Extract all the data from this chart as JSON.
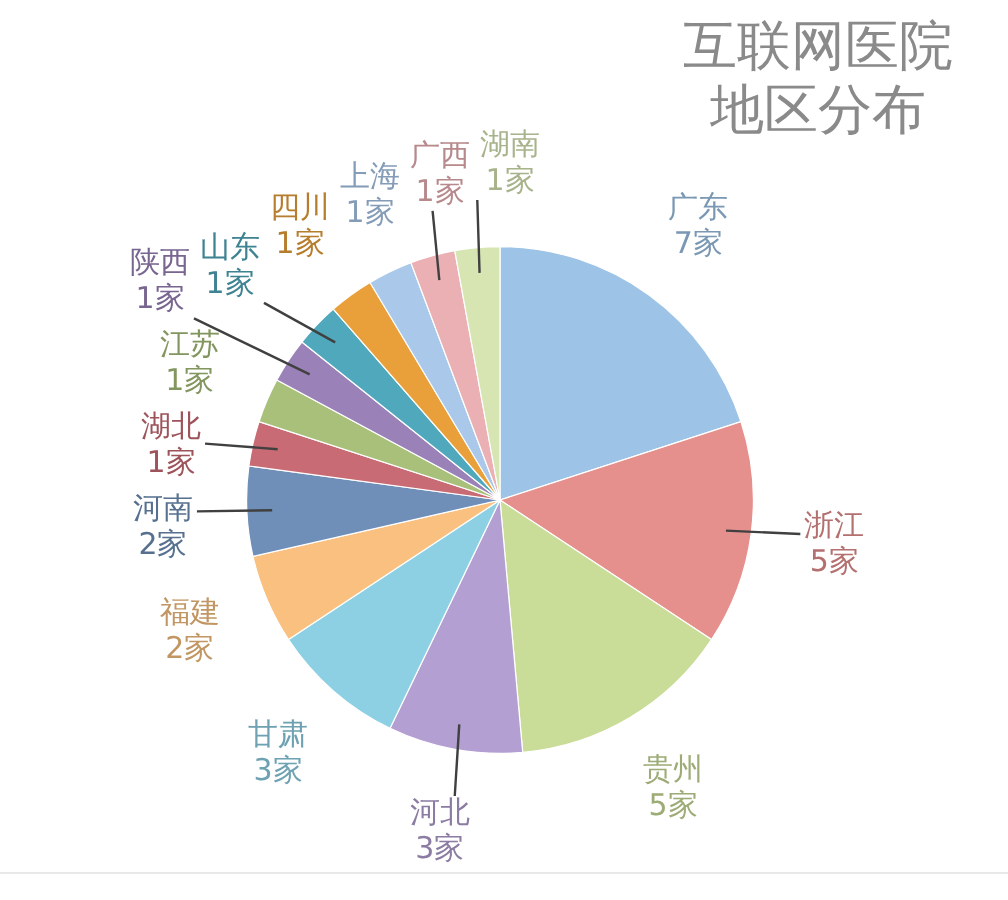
{
  "chart_data": {
    "type": "pie",
    "title": "互联网医院地区分布",
    "categories": [
      "广东",
      "浙江",
      "贵州",
      "河北",
      "甘肃",
      "福建",
      "河南",
      "湖北",
      "江苏",
      "陕西",
      "山东",
      "四川",
      "上海",
      "广西",
      "湖南"
    ],
    "values": [
      7,
      5,
      5,
      3,
      3,
      2,
      2,
      1,
      1,
      1,
      1,
      1,
      1,
      1,
      1
    ],
    "value_labels": [
      "7家",
      "5家",
      "5家",
      "3家",
      "3家",
      "2家",
      "2家",
      "1家",
      "1家",
      "1家",
      "1家",
      "1家",
      "1家",
      "1家",
      "1家"
    ],
    "colors": [
      "#9dc3e6",
      "#e6908e",
      "#c9dc98",
      "#b49fd2",
      "#8dd0e4",
      "#f9c07f",
      "#6f8fb8",
      "#c96b74",
      "#a8c07a",
      "#9a82b8",
      "#4fa8bb",
      "#e9a03a",
      "#a9c8ea",
      "#eab0b4",
      "#d6e5b2"
    ]
  }
}
